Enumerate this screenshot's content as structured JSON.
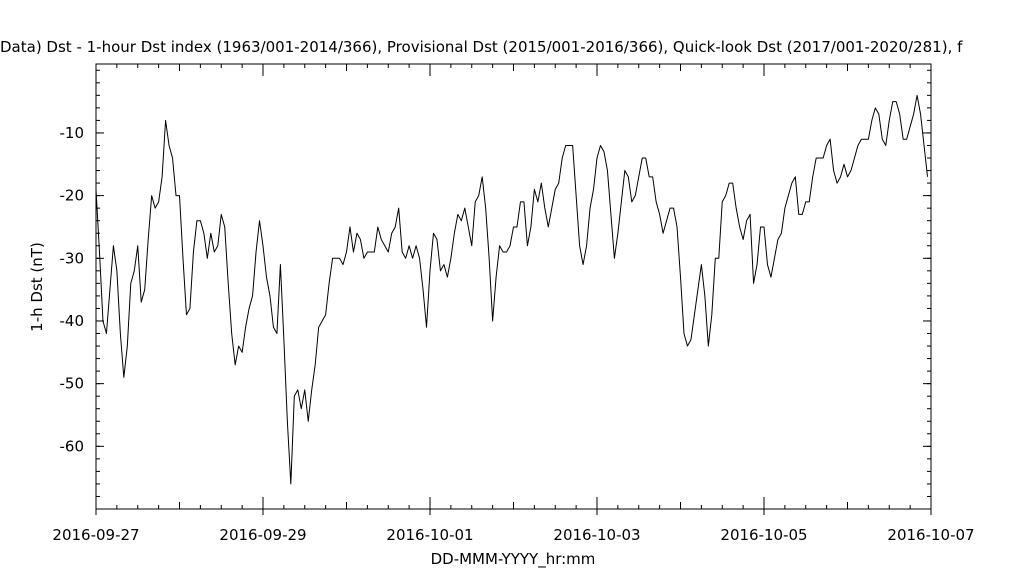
{
  "chart_data": {
    "type": "line",
    "title": "Data)  Dst - 1-hour Dst index (1963/001-2014/366), Provisional Dst (2015/001-2016/366), Quick-look Dst (2017/001-2020/281), f",
    "xlabel": "DD-MMM-YYYY_hr:mm",
    "ylabel": "1-h Dst (nT)",
    "x_ticks": [
      "2016-09-27",
      "2016-09-29",
      "2016-10-01",
      "2016-10-03",
      "2016-10-05",
      "2016-10-07"
    ],
    "y_ticks": [
      "-10",
      "-20",
      "-30",
      "-40",
      "-50",
      "-60"
    ],
    "xlim": [
      "2016-09-27T00:00",
      "2016-10-07T00:00"
    ],
    "ylim": [
      -70,
      1
    ],
    "grid": false,
    "x_start": "2016-09-27T00:00",
    "x_step_hours": 1,
    "series": [
      {
        "values": [
          -19,
          -29,
          -40,
          -42,
          -35,
          -28,
          -32,
          -42,
          -49,
          -44,
          -34,
          -32,
          -28,
          -37,
          -35,
          -27,
          -20,
          -22,
          -21,
          -17,
          -8,
          -12,
          -14,
          -20,
          -20,
          -30,
          -39,
          -38,
          -29,
          -24,
          -24,
          -26,
          -30,
          -26,
          -29,
          -28,
          -23,
          -25,
          -34,
          -42,
          -47,
          -44,
          -45,
          -41,
          -38,
          -36,
          -29,
          -24,
          -28,
          -33,
          -36,
          -41,
          -42,
          -31,
          -43,
          -56,
          -66,
          -52,
          -51,
          -54,
          -51,
          -56,
          -51,
          -47,
          -41,
          -40,
          -39,
          -34,
          -30,
          -30,
          -30,
          -31,
          -29,
          -25,
          -29,
          -26,
          -27,
          -30,
          -29,
          -29,
          -29,
          -25,
          -27,
          -28,
          -29,
          -26,
          -25,
          -22,
          -29,
          -30,
          -28,
          -30,
          -28,
          -30,
          -35,
          -41,
          -32,
          -26,
          -27,
          -32,
          -31,
          -33,
          -30,
          -26,
          -23,
          -24,
          -22,
          -25,
          -28,
          -21,
          -20,
          -17,
          -22,
          -30,
          -40,
          -33,
          -28,
          -29,
          -29,
          -28,
          -25,
          -25,
          -21,
          -21,
          -28,
          -25,
          -19,
          -21,
          -18,
          -22,
          -25,
          -22,
          -19,
          -18,
          -14,
          -12,
          -12,
          -12,
          -20,
          -28,
          -31,
          -28,
          -22,
          -19,
          -14,
          -12,
          -13,
          -16,
          -23,
          -30,
          -26,
          -21,
          -16,
          -17,
          -21,
          -20,
          -17,
          -14,
          -14,
          -17,
          -17,
          -21,
          -23,
          -26,
          -24,
          -22,
          -22,
          -25,
          -33,
          -42,
          -44,
          -43,
          -39,
          -35,
          -31,
          -36,
          -44,
          -39,
          -30,
          -30,
          -21,
          -20,
          -18,
          -18,
          -22,
          -25,
          -27,
          -24,
          -23,
          -34,
          -31,
          -25,
          -25,
          -31,
          -33,
          -30,
          -27,
          -26,
          -22,
          -20,
          -18,
          -17,
          -23,
          -23,
          -21,
          -21,
          -17,
          -14,
          -14,
          -14,
          -12,
          -11,
          -16,
          -18,
          -17,
          -15,
          -17,
          -16,
          -14,
          -12,
          -11,
          -11,
          -11,
          -8,
          -6,
          -7,
          -11,
          -12,
          -8,
          -5,
          -5,
          -7,
          -11,
          -11,
          -9,
          -7,
          -4,
          -7,
          -12,
          -17
        ]
      }
    ]
  }
}
